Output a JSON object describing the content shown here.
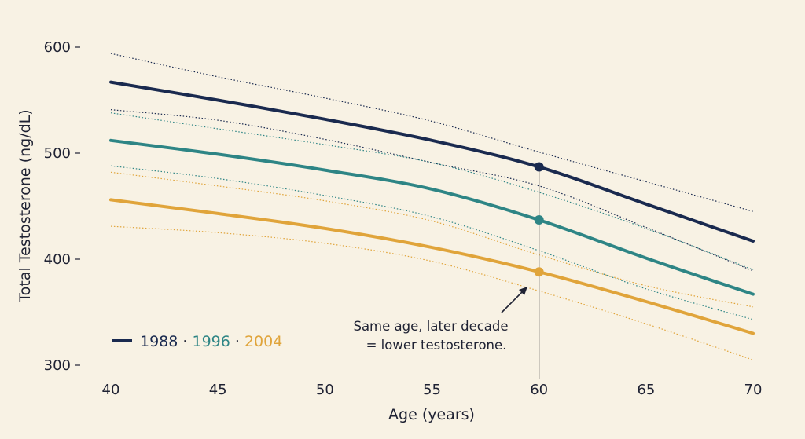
{
  "chart_data": {
    "type": "line",
    "title": "",
    "xlabel": "Age (years)",
    "ylabel": "Total Testosterone (ng/dL)",
    "xlim": [
      40,
      70
    ],
    "ylim": [
      300,
      600
    ],
    "xticks": [
      40,
      45,
      50,
      55,
      60,
      65,
      70
    ],
    "yticks": [
      300,
      400,
      500,
      600
    ],
    "grid": false,
    "legend_position": "bottom-left",
    "x": [
      40,
      45,
      50,
      55,
      60,
      65,
      70
    ],
    "series": [
      {
        "name": "1988",
        "color": "#1a2a4f",
        "values": [
          567,
          550,
          532,
          512,
          487,
          452,
          417
        ],
        "upper": [
          594,
          572,
          552,
          530,
          501,
          473,
          445
        ],
        "lower": [
          541,
          531,
          513,
          491,
          469,
          430,
          389
        ]
      },
      {
        "name": "1996",
        "color": "#2e8585",
        "values": [
          512,
          499,
          484,
          466,
          437,
          401,
          367
        ],
        "upper": [
          538,
          523,
          508,
          491,
          463,
          429,
          390
        ],
        "lower": [
          488,
          476,
          460,
          440,
          408,
          372,
          343
        ]
      },
      {
        "name": "2004",
        "color": "#e0a43a",
        "values": [
          456,
          443,
          429,
          411,
          388,
          360,
          330
        ],
        "upper": [
          482,
          469,
          455,
          436,
          404,
          375,
          355
        ],
        "lower": [
          431,
          425,
          415,
          398,
          370,
          339,
          305
        ]
      }
    ],
    "highlight": {
      "x": 60,
      "points": [
        487,
        437,
        388
      ]
    },
    "annotation": {
      "lines": [
        "Same age, later decade",
        "= lower testosterone."
      ]
    },
    "legend": {
      "separator": " · "
    }
  }
}
